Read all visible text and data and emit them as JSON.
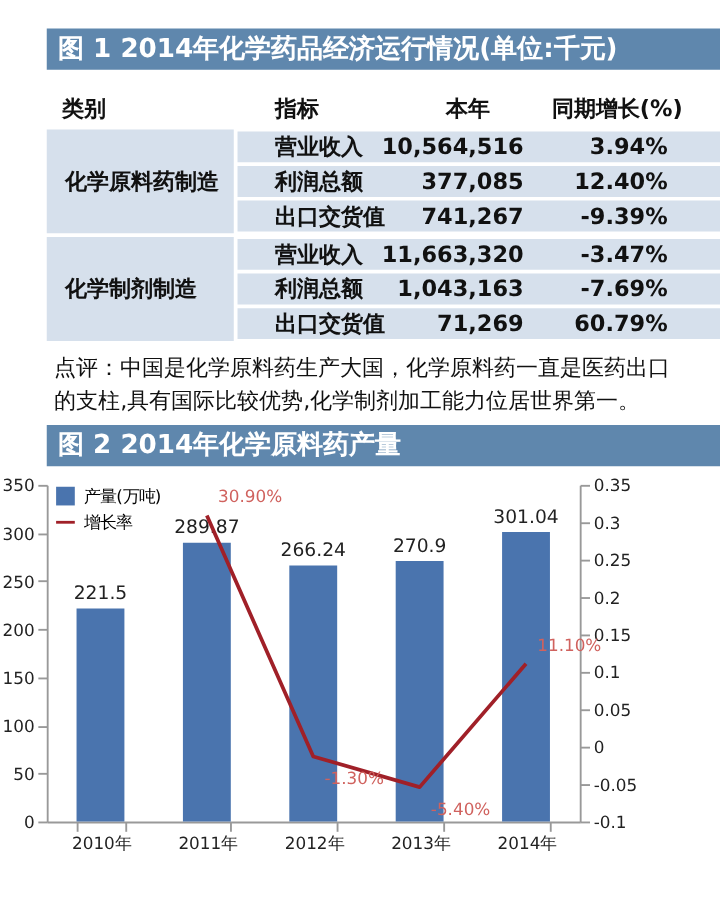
{
  "chart_data": [
    {
      "type": "other",
      "title": "图 1  2014年化学药品经济运行情况(单位:千元)",
      "annotations": [
        "类别",
        "指标",
        "本年",
        "同期增长(%)",
        "化学原料药制造",
        "营业收入",
        "10,564,516",
        "3.94%",
        "利润总额",
        "377,085",
        "12.40%",
        "出口交货值",
        "741,267",
        "-9.39%",
        "化学制剂制造",
        "营业收入",
        "11,663,320",
        "-3.47%",
        "利润总额",
        "1,043,163",
        "-7.69%",
        "出口交货值",
        "71,269",
        "60.79%",
        "点评：中国是化学原料药生产大国，化学原料药一直是医药出口的支柱,具有国际比较优势,化学制剂加工能力位居世界第一。"
      ]
    },
    {
      "type": "bar",
      "title": "图 2  2014年化学原料药产量",
      "categories": [
        "2010年",
        "2011年",
        "2012年",
        "2013年",
        "2014年"
      ],
      "series": [
        {
          "name": "产量(万吨)",
          "type": "bar",
          "color": "#4a74ae",
          "values": [
            221.5,
            289.87,
            266.24,
            270.9,
            301.04
          ],
          "value_labels": [
            "221.5",
            "289.87",
            "266.24",
            "270.9",
            "301.04"
          ]
        },
        {
          "name": "增长率",
          "type": "line",
          "axis": "y2",
          "color": "#a02028",
          "values": [
            null,
            0.309,
            -0.013,
            -0.054,
            0.111
          ],
          "value_labels": [
            null,
            "30.90%",
            "-1.30%",
            "-5.40%",
            "11.10%"
          ]
        }
      ],
      "ylim": [
        0,
        350
      ],
      "yticks": [
        0,
        50,
        100,
        150,
        200,
        250,
        300,
        350
      ],
      "y2lim": [
        -0.1,
        0.35
      ],
      "y2ticks": [
        -0.1,
        -0.05,
        0,
        0.05,
        0.1,
        0.15,
        0.2,
        0.25,
        0.3,
        0.35
      ],
      "legend": "top left",
      "grid": false
    }
  ]
}
